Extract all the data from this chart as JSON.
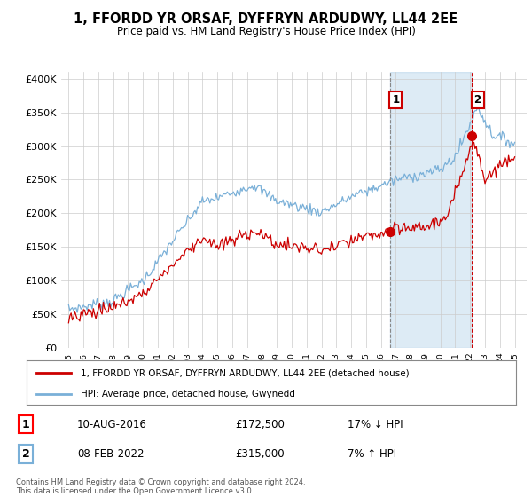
{
  "title": "1, FFORDD YR ORSAF, DYFFRYN ARDUDWY, LL44 2EE",
  "subtitle": "Price paid vs. HM Land Registry's House Price Index (HPI)",
  "ylabel_ticks": [
    "£0",
    "£50K",
    "£100K",
    "£150K",
    "£200K",
    "£250K",
    "£300K",
    "£350K",
    "£400K"
  ],
  "ytick_values": [
    0,
    50000,
    100000,
    150000,
    200000,
    250000,
    300000,
    350000,
    400000
  ],
  "ylim": [
    0,
    410000
  ],
  "hpi_color": "#7ab0d8",
  "price_color": "#cc0000",
  "shade_color": "#ddeeff",
  "marker1_year": 2016.6,
  "marker1_price": 172500,
  "marker2_year": 2022.1,
  "marker2_price": 315000,
  "legend_label1": "1, FFORDD YR ORSAF, DYFFRYN ARDUDWY, LL44 2EE (detached house)",
  "legend_label2": "HPI: Average price, detached house, Gwynedd",
  "annotation1_num": "1",
  "annotation1_date": "10-AUG-2016",
  "annotation1_price": "£172,500",
  "annotation1_hpi": "17% ↓ HPI",
  "annotation2_num": "2",
  "annotation2_date": "08-FEB-2022",
  "annotation2_price": "£315,000",
  "annotation2_hpi": "7% ↑ HPI",
  "footer": "Contains HM Land Registry data © Crown copyright and database right 2024.\nThis data is licensed under the Open Government Licence v3.0.",
  "background_color": "#ffffff",
  "grid_color": "#cccccc"
}
